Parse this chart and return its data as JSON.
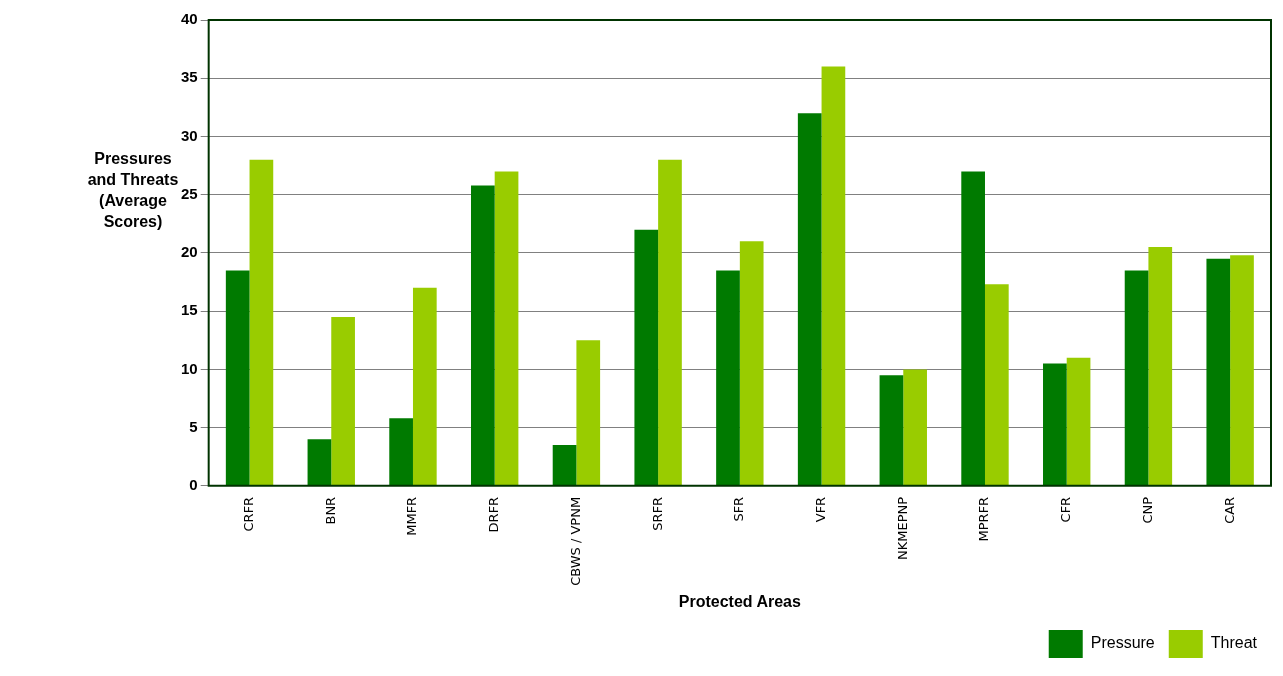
{
  "chart_data": {
    "type": "bar",
    "xlabel": "Protected Areas",
    "ylabel": "Pressures and Threats (Average Scores)",
    "categories": [
      "CRFR",
      "BNR",
      "MMFR",
      "DRFR",
      "CBWS / VPNM",
      "SRFR",
      "SFR",
      "VFR",
      "NKMEPNP",
      "MPRFR",
      "CFR",
      "CNP",
      "CAR"
    ],
    "series": [
      {
        "name": "Pressure",
        "color": "#007a00",
        "values": [
          18.5,
          4,
          5.8,
          25.8,
          3.5,
          22,
          18.5,
          32,
          9.5,
          27,
          10.5,
          18.5,
          19.5
        ]
      },
      {
        "name": "Threat",
        "color": "#99cc00",
        "values": [
          28,
          14.5,
          17,
          27,
          12.5,
          28,
          21,
          36,
          10,
          17.3,
          11,
          20.5,
          19.8
        ]
      }
    ],
    "ylim": [
      0,
      40
    ],
    "yticks": [
      0,
      5,
      10,
      15,
      20,
      25,
      30,
      35,
      40
    ],
    "grid": "y",
    "legend": "bottom right"
  }
}
